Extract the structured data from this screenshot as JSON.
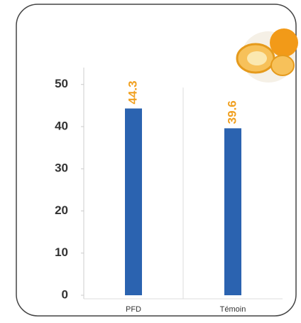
{
  "chart_data": {
    "type": "bar",
    "categories": [
      "PFD",
      "Témoin"
    ],
    "values": [
      44.3,
      39.6
    ],
    "color": "#2b63b0",
    "label_color": "#f0a020",
    "ylim": [
      0,
      54
    ],
    "yticks": [
      0,
      10,
      20,
      30,
      40,
      50
    ],
    "grid": false
  }
}
